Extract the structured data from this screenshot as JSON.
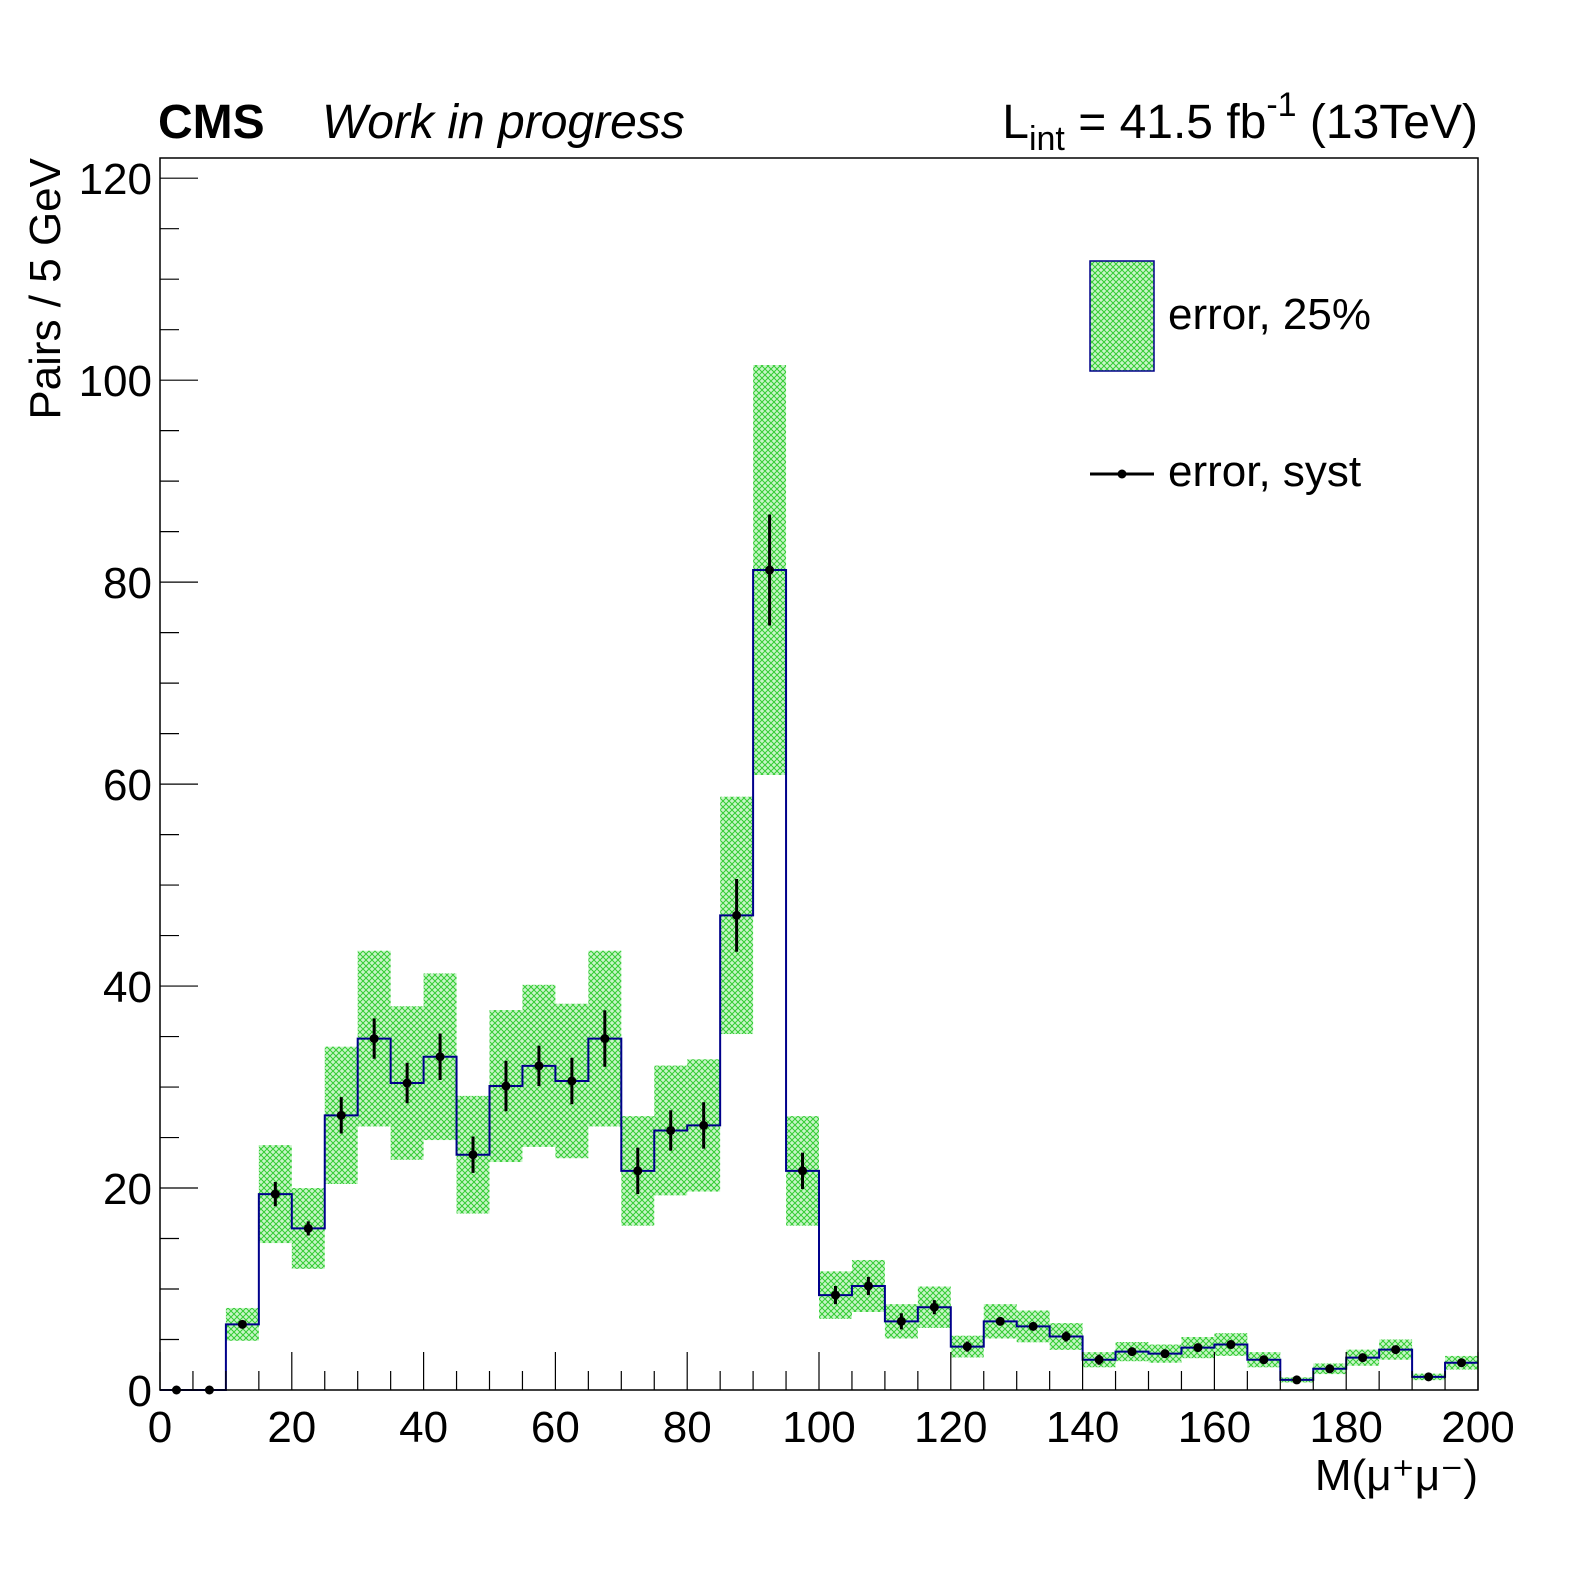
{
  "header": {
    "experiment": "CMS",
    "status": "Work in progress",
    "lumi_prefix": "L",
    "lumi_subscript": "int",
    "lumi_value": " = 41.5 fb",
    "lumi_superscript": "-1",
    "lumi_energy": " (13TeV)"
  },
  "chart_data": {
    "type": "histogram",
    "xlabel": "M(μ⁺μ⁻)",
    "ylabel": "Pairs / 5 GeV",
    "xlim": [
      0,
      200
    ],
    "ylim": [
      0,
      122
    ],
    "xticks": [
      "0",
      "20",
      "40",
      "60",
      "80",
      "100",
      "120",
      "140",
      "160",
      "180",
      "200"
    ],
    "yticks": [
      "0",
      "20",
      "40",
      "60",
      "80",
      "100",
      "120"
    ],
    "bin_width": 5,
    "bin_edges_start": 0,
    "values": [
      0,
      0,
      6.5,
      19.4,
      16,
      27.2,
      34.8,
      30.4,
      33,
      23.3,
      30.1,
      32.1,
      30.6,
      34.8,
      21.7,
      25.7,
      26.2,
      47,
      81.2,
      21.7,
      9.4,
      10.3,
      6.8,
      8.2,
      4.3,
      6.8,
      6.3,
      5.3,
      3,
      3.8,
      3.6,
      4.2,
      4.5,
      3,
      1,
      2.1,
      3.2,
      4,
      1.3,
      2.7
    ],
    "syst_errors": [
      0,
      0,
      0.3,
      1.2,
      0.7,
      1.8,
      2,
      2,
      2.3,
      1.8,
      2.5,
      2,
      2.3,
      2.8,
      2.3,
      2,
      2.3,
      3.6,
      5.5,
      1.8,
      0.9,
      0.9,
      0.8,
      0.7,
      0.5,
      0.4,
      0.3,
      0.5,
      0.5,
      0.2,
      0.4,
      0.4,
      0.3,
      0.3,
      0.1,
      0.2,
      0.2,
      0.2,
      0.1,
      0.1
    ],
    "band_fraction": 0.25,
    "series": [
      {
        "name": "error, 25%",
        "kind": "band",
        "color": "#66dd66"
      },
      {
        "name": "error, syst",
        "kind": "points",
        "color": "#000000"
      }
    ],
    "line_color": "#00008b",
    "legend_position": "top-right"
  }
}
